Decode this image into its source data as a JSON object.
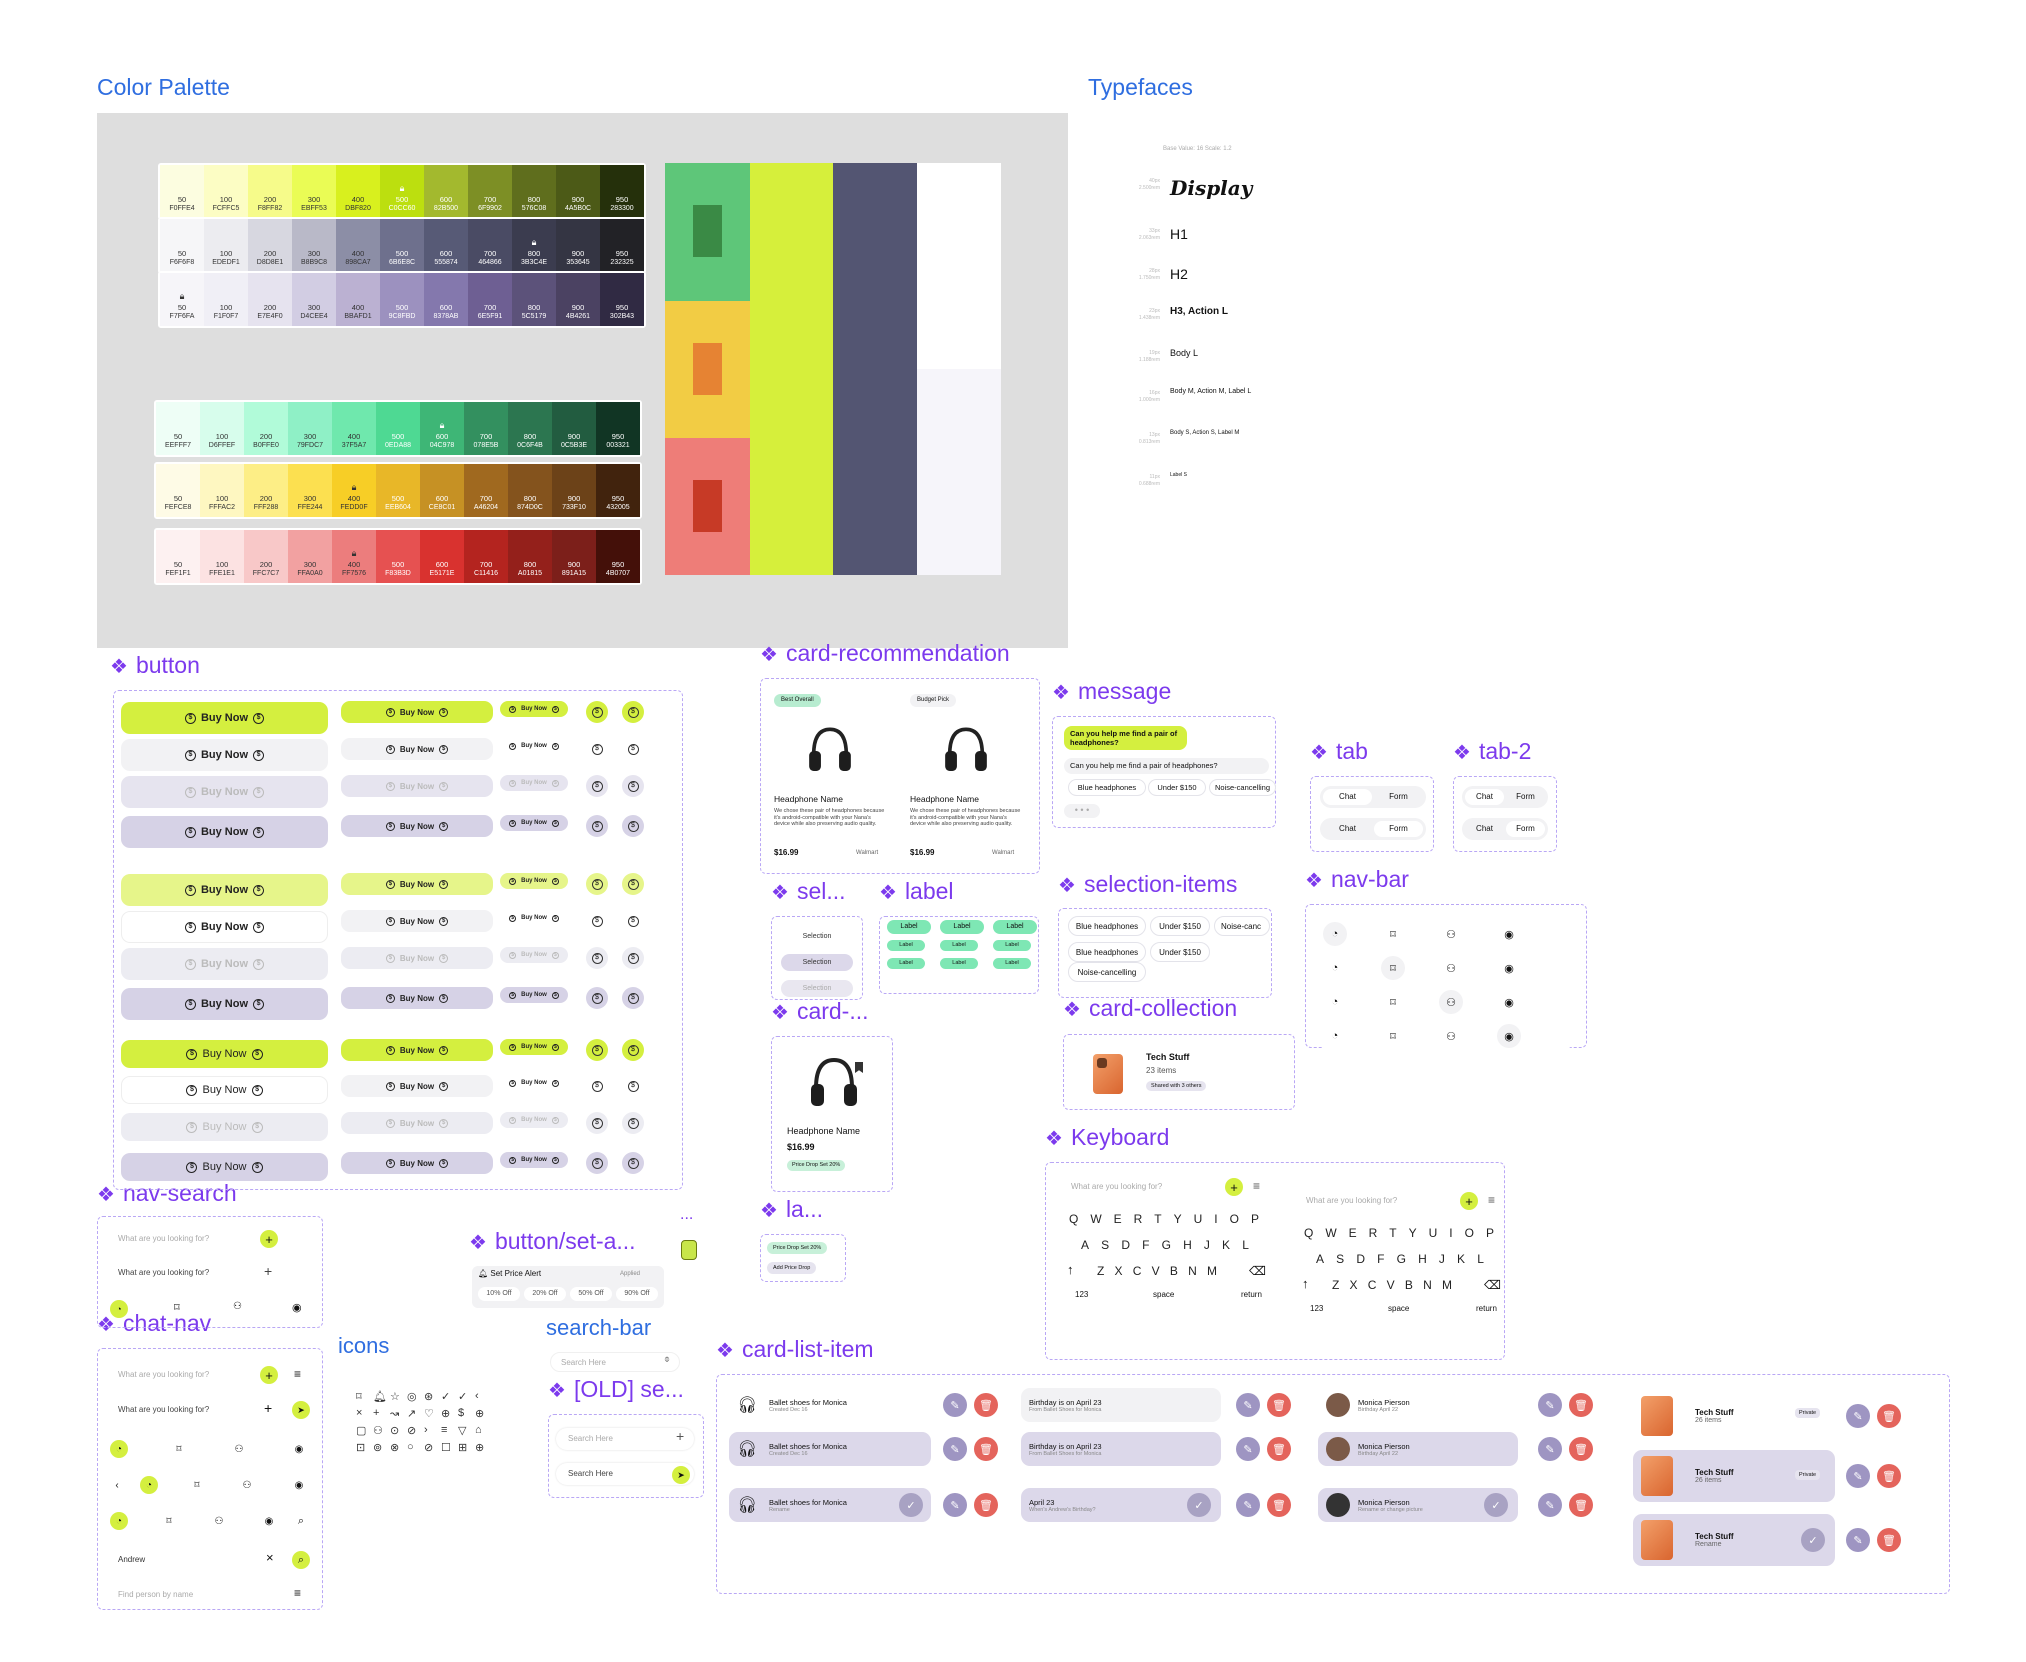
{
  "titles": {
    "color_palette": "Color Palette",
    "typefaces": "Typefaces",
    "button": "button",
    "card_recommendation": "card-recommendation",
    "message": "message",
    "tab": "tab",
    "tab2": "tab-2",
    "sel": "sel...",
    "label": "label",
    "selection_items": "selection-items",
    "nav_bar": "nav-bar",
    "card_short": "card-...",
    "card_collection": "card-collection",
    "keyboard": "Keyboard",
    "nav_search": "nav-search",
    "button_set": "button/set-a...",
    "la": "la...",
    "chat_nav": "chat-nav",
    "icons": "icons",
    "search_bar": "search-bar",
    "old_search": "[OLD] se...",
    "card_list_item": "card-list-item",
    "ellipsis": "..."
  },
  "palette": {
    "rows": [
      {
        "labels": [
          "50",
          "100",
          "200",
          "300",
          "400",
          "500",
          "600",
          "700",
          "800",
          "900",
          "950"
        ],
        "codes": [
          "F0FFE4",
          "FCFFC5",
          "F8FF82",
          "EBFF53",
          "DBF820",
          "C0CC60",
          "82B500",
          "6F9902",
          "576C08",
          "4A5B0C",
          "283300"
        ],
        "colors": [
          "#fcfde0",
          "#fcfdc4",
          "#f6fb8a",
          "#eafc55",
          "#d8f01e",
          "#bcdf0f",
          "#a3b92e",
          "#7d8f25",
          "#5f6e1d",
          "#4c5a17",
          "#25300b"
        ],
        "lock": 5
      },
      {
        "labels": [
          "50",
          "100",
          "200",
          "300",
          "400",
          "500",
          "600",
          "700",
          "800",
          "900",
          "950"
        ],
        "codes": [
          "F6F6F8",
          "EDEDF1",
          "D8D8E1",
          "B8B9C8",
          "898CA7",
          "6B6E8C",
          "555874",
          "464866",
          "3B3C4E",
          "353645",
          "232325"
        ],
        "colors": [
          "#f6f6f8",
          "#ececf0",
          "#d7d7e0",
          "#b9b9c8",
          "#8c8ea6",
          "#6e708d",
          "#575a76",
          "#4a4b64",
          "#3b3c4f",
          "#343543",
          "#222226"
        ],
        "lock": 8
      },
      {
        "labels": [
          "50",
          "100",
          "200",
          "300",
          "400",
          "500",
          "600",
          "700",
          "800",
          "900",
          "950"
        ],
        "codes": [
          "F7F6FA",
          "F1F0F7",
          "E7E4F0",
          "D4CEE4",
          "BBAFD1",
          "9C8FBD",
          "8378AB",
          "6E5F91",
          "5C5179",
          "4B4261",
          "302B43"
        ],
        "colors": [
          "#f6f5f9",
          "#f0eff6",
          "#e6e3ef",
          "#d2cde3",
          "#bbb1d2",
          "#9c91bf",
          "#8478ad",
          "#6e5f93",
          "#5c527a",
          "#4b4262",
          "#302a43"
        ],
        "lock": 0
      },
      {
        "labels": [
          "50",
          "100",
          "200",
          "300",
          "400",
          "500",
          "600",
          "700",
          "800",
          "900",
          "950"
        ],
        "codes": [
          "EEFFF7",
          "D6FFEF",
          "B0FFE0",
          "79FDC7",
          "37F5A7",
          "0EDA88",
          "04C978",
          "078E5B",
          "0C6F4B",
          "0C5B3E",
          "003321"
        ],
        "colors": [
          "#eefef6",
          "#d7fdec",
          "#b1fbd9",
          "#8ff0c6",
          "#6fe8ad",
          "#4ed993",
          "#3eb676",
          "#33905f",
          "#2c7650",
          "#225c40",
          "#113524"
        ],
        "lock": 6
      },
      {
        "labels": [
          "50",
          "100",
          "200",
          "300",
          "400",
          "500",
          "600",
          "700",
          "800",
          "900",
          "950"
        ],
        "codes": [
          "FEFCE8",
          "FFFAC2",
          "FFF288",
          "FFE244",
          "FEDD0F",
          "EEB604",
          "CE8C01",
          "A46204",
          "874D0C",
          "733F10",
          "432005"
        ],
        "colors": [
          "#fefbe6",
          "#fef7c1",
          "#fdee86",
          "#fce050",
          "#f7ce26",
          "#e8b728",
          "#c69124",
          "#a0691f",
          "#84531d",
          "#6c4218",
          "#41230d"
        ],
        "lock": 4
      },
      {
        "labels": [
          "50",
          "100",
          "200",
          "300",
          "400",
          "500",
          "600",
          "700",
          "800",
          "900",
          "950"
        ],
        "codes": [
          "FEF1F1",
          "FFE1E1",
          "FFC7C7",
          "FFA0A0",
          "FF7576",
          "F83B3D",
          "E5171E",
          "C11416",
          "A01815",
          "891A15",
          "4B0707"
        ],
        "colors": [
          "#fdf1f1",
          "#fce2e2",
          "#f8c8c8",
          "#f2a1a1",
          "#ec7d7d",
          "#e65151",
          "#d9322f",
          "#b4241f",
          "#94201b",
          "#7c1f1a",
          "#441009"
        ],
        "lock": 4
      }
    ]
  },
  "typefaces": {
    "header": "Base Value: 16   Scale: 1.2",
    "items": [
      {
        "size": "40px",
        "em": "2.500rem",
        "label": "Display"
      },
      {
        "size": "33px",
        "em": "2.063rem",
        "label": "H1"
      },
      {
        "size": "28px",
        "em": "1.750rem",
        "label": "H2"
      },
      {
        "size": "23px",
        "em": "1.438rem",
        "label": "H3, Action L"
      },
      {
        "size": "19px",
        "em": "1.188rem",
        "label": "Body L"
      },
      {
        "size": "16px",
        "em": "1.000rem",
        "label": "Body M, Action M, Label L"
      },
      {
        "size": "13px",
        "em": "0.813rem",
        "label": "Body S, Action S, Label M"
      },
      {
        "size": "11px",
        "em": "0.688rem",
        "label": "Label S"
      }
    ]
  },
  "button": {
    "label": "Buy Now"
  },
  "card_recommendation": {
    "cards": [
      {
        "badge": "Best Overall",
        "name": "Headphone Name",
        "desc": "We chose these pair of headphones because it's android-compatible with your Nana's device while also preserving audio quality.",
        "price": "$16.99",
        "store": "Walmart"
      },
      {
        "badge": "Budget Pick",
        "name": "Headphone Name",
        "desc": "We chose these pair of headphones because it's android-compatible with your Nana's device while also preserving audio quality.",
        "price": "$16.99",
        "store": "Walmart"
      }
    ]
  },
  "message": {
    "user": "Can you help me find a pair of headphones?",
    "reply": "Can you help me find a pair of headphones?",
    "chips": [
      "Blue headphones",
      "Under $150",
      "Noise-cancelling"
    ]
  },
  "tabs": {
    "a": "Chat",
    "b": "Form"
  },
  "selection": {
    "label": "Selection"
  },
  "label_comp": {
    "text": "Label"
  },
  "selection_items": {
    "row1": [
      "Blue headphones",
      "Under $150",
      "Noise-canc"
    ],
    "row2": [
      "Blue headphones",
      "Under $150"
    ],
    "row3": [
      "Noise-cancelling"
    ]
  },
  "card_small": {
    "name": "Headphone Name",
    "price": "$16.99",
    "badge": "Price Drop Set 20%"
  },
  "card_collection": {
    "title": "Tech Stuff",
    "count": "23 items",
    "shared": "Shared with 3 others"
  },
  "keyboard": {
    "placeholder": "What are you looking for?",
    "row1": [
      "Q",
      "W",
      "E",
      "R",
      "T",
      "Y",
      "U",
      "I",
      "O",
      "P"
    ],
    "row2": [
      "A",
      "S",
      "D",
      "F",
      "G",
      "H",
      "J",
      "K",
      "L"
    ],
    "row3": [
      "Z",
      "X",
      "C",
      "V",
      "B",
      "N",
      "M"
    ],
    "num": "123",
    "space": "space",
    "ret": "return"
  },
  "nav_search": {
    "placeholder": "What are you looking for?"
  },
  "button_set": {
    "alert": "Set Price Alert",
    "applied": "Applied",
    "opts": [
      "10% Off",
      "20% Off",
      "50% Off",
      "90% Off"
    ]
  },
  "la": {
    "a": "Price Drop Set 20%",
    "b": "Add Price Drop"
  },
  "chat_nav": {
    "placeholder": "What are you looking for?",
    "name": "Andrew",
    "find": "Find person by name"
  },
  "search_bar": {
    "placeholder": "Search Here"
  },
  "card_list": {
    "col1": {
      "title": "Ballet shoes for Monica",
      "sub": "Created Dec 16",
      "rename": "Rename"
    },
    "col2": {
      "title": "Birthday is on April 23",
      "sub": "From Ballet Shoes for Monica",
      "title3": "April 23",
      "sub3": "When's Andrew's Birthday?"
    },
    "col3": {
      "title": "Monica Pierson",
      "sub": "Birthday April 22",
      "sub3": "Rename or change picture"
    },
    "col4": {
      "title": "Tech Stuff",
      "sub": "26 items",
      "private": "Private",
      "rename": "Rename"
    }
  },
  "colors": {
    "lime": "#d4ef3f",
    "lime_light": "#e6f58a",
    "lavender": "#d6d2e6",
    "lavender_light": "#e6e4ef",
    "grey": "#f2f2f4",
    "red": "#e4645c",
    "purple_btn": "#9e95c2",
    "accent_title": "#7c3aed",
    "blue_title": "#2f6ee0"
  }
}
